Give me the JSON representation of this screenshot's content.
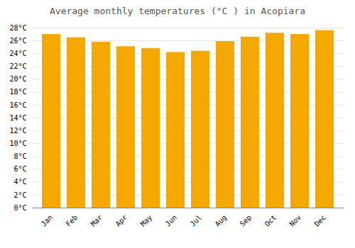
{
  "chart_data": {
    "type": "bar",
    "title": "Average monthly temperatures (°C ) in Acopiara",
    "categories": [
      "Jan",
      "Feb",
      "Mar",
      "Apr",
      "May",
      "Jun",
      "Jul",
      "Aug",
      "Sep",
      "Oct",
      "Nov",
      "Dec"
    ],
    "values": [
      27.0,
      26.5,
      25.8,
      25.1,
      24.8,
      24.2,
      24.4,
      25.9,
      26.6,
      27.2,
      27.0,
      27.6
    ],
    "color": "#F5A800",
    "ylim": [
      0,
      28
    ],
    "yticks": [
      {
        "value": 0,
        "label": "0°C"
      },
      {
        "value": 2,
        "label": "2°C"
      },
      {
        "value": 4,
        "label": "4°C"
      },
      {
        "value": 6,
        "label": "6°C"
      },
      {
        "value": 8,
        "label": "8°C"
      },
      {
        "value": 10,
        "label": "10°C"
      },
      {
        "value": 12,
        "label": "12°C"
      },
      {
        "value": 14,
        "label": "14°C"
      },
      {
        "value": 16,
        "label": "16°C"
      },
      {
        "value": 18,
        "label": "18°C"
      },
      {
        "value": 20,
        "label": "20°C"
      },
      {
        "value": 22,
        "label": "22°C"
      },
      {
        "value": 24,
        "label": "24°C"
      },
      {
        "value": 26,
        "label": "26°C"
      },
      {
        "value": 28,
        "label": "28°C"
      }
    ],
    "grid": true
  }
}
